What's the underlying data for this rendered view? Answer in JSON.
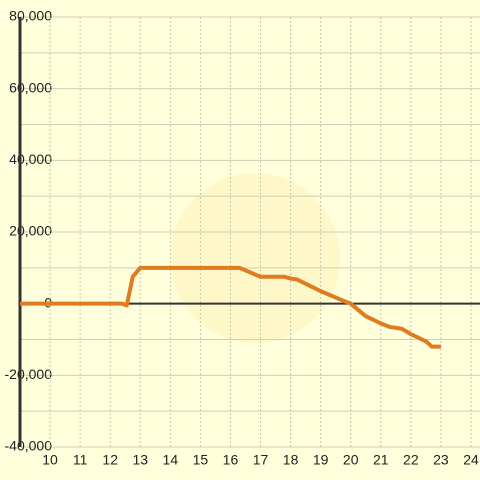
{
  "chart_data": {
    "type": "line",
    "x": [
      9,
      12.4,
      12.55,
      12.75,
      13,
      16.3,
      17,
      17.8,
      18,
      18.2,
      19,
      19.7,
      20,
      20.5,
      21,
      21.3,
      21.7,
      22,
      22.5,
      22.7,
      23
    ],
    "series": [
      {
        "color": "#e07b20",
        "values": [
          0,
          0,
          -500,
          7500,
          10000,
          10000,
          7500,
          7500,
          7000,
          6800,
          3500,
          1000,
          0,
          -3500,
          -5500,
          -6500,
          -7000,
          -8500,
          -10500,
          -12000,
          -12000
        ]
      }
    ],
    "xlim": [
      9,
      24.3
    ],
    "xticks": [
      10,
      11,
      12,
      13,
      14,
      15,
      16,
      17,
      18,
      19,
      20,
      21,
      22,
      23,
      24
    ],
    "ylim": [
      -40000,
      80000
    ],
    "yticks": [
      {
        "value": 80000,
        "label": "80,000"
      },
      {
        "value": 60000,
        "label": "60,000"
      },
      {
        "value": 40000,
        "label": "40,000"
      },
      {
        "value": 20000,
        "label": "20,000"
      },
      0,
      {
        "value": -20000,
        "label": "-20,000"
      },
      {
        "value": -40000,
        "label": "-40,000"
      }
    ],
    "grid": true,
    "minor_grid": true
  }
}
